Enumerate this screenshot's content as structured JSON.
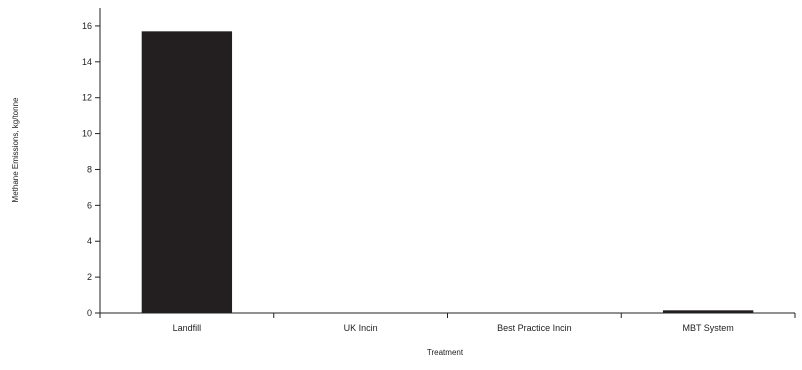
{
  "chart_data": {
    "type": "bar",
    "categories": [
      "Landfill",
      "UK Incin",
      "Best Practice Incin",
      "MBT System"
    ],
    "values": [
      15.7,
      0,
      0,
      0.15
    ],
    "xlabel": "Treatment",
    "ylabel": "Methane Emissions, kg/tonne",
    "ylim": [
      0,
      17
    ],
    "yticks": [
      0,
      2,
      4,
      6,
      8,
      10,
      12,
      14,
      16
    ],
    "grid": false,
    "legend": "none",
    "bar_color": "#231f20"
  }
}
